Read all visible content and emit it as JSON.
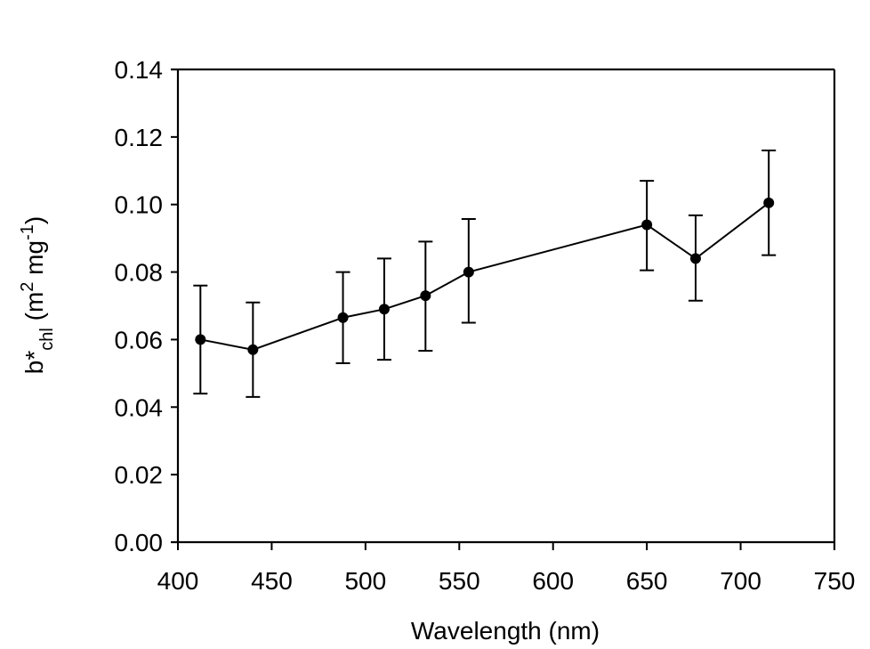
{
  "chart_data": {
    "type": "line",
    "title": "",
    "xlabel": "Wavelength (nm)",
    "ylabel": {
      "base": "b*",
      "subscript": "chl",
      "units_prefix": " (m",
      "units_sup1": "2",
      "units_mid": " mg",
      "units_sup2": "-1",
      "units_suffix": ")"
    },
    "xlim": [
      400,
      750
    ],
    "ylim": [
      0.0,
      0.14
    ],
    "xticks": [
      400,
      450,
      500,
      550,
      600,
      650,
      700,
      750
    ],
    "xtick_labels": [
      "400",
      "450",
      "500",
      "550",
      "600",
      "650",
      "700",
      "750"
    ],
    "yticks": [
      0.0,
      0.02,
      0.04,
      0.06,
      0.08,
      0.1,
      0.12,
      0.14
    ],
    "ytick_labels": [
      "0.00",
      "0.02",
      "0.04",
      "0.06",
      "0.08",
      "0.10",
      "0.12",
      "0.14"
    ],
    "grid": false,
    "legend": null,
    "series": [
      {
        "name": "b*chl",
        "marker": "filled-circle",
        "color": "#000000",
        "x": [
          412,
          440,
          488,
          510,
          532,
          555,
          650,
          676,
          715
        ],
        "y": [
          0.06,
          0.057,
          0.0665,
          0.069,
          0.073,
          0.08,
          0.094,
          0.084,
          0.1005
        ],
        "error_upper": [
          0.076,
          0.071,
          0.08,
          0.084,
          0.089,
          0.0957,
          0.107,
          0.0968,
          0.116
        ],
        "error_lower": [
          0.044,
          0.043,
          0.053,
          0.054,
          0.0567,
          0.065,
          0.0805,
          0.0715,
          0.085
        ]
      }
    ]
  }
}
